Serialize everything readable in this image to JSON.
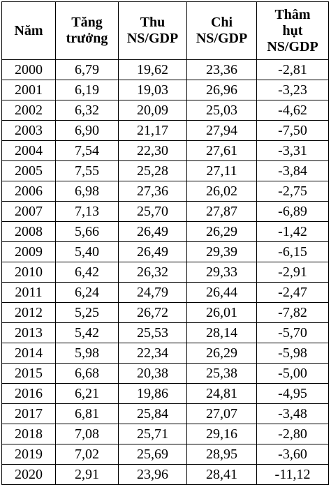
{
  "table": {
    "header": [
      [
        "Năm"
      ],
      [
        "Tăng",
        "trưởng"
      ],
      [
        "Thu",
        "NS/GDP"
      ],
      [
        "Chi",
        "NS/GDP"
      ],
      [
        "Thâm",
        "hụt",
        "NS/GDP"
      ]
    ],
    "rows": [
      [
        "2000",
        "6,79",
        "19,62",
        "23,36",
        "-2,81"
      ],
      [
        "2001",
        "6,19",
        "19,03",
        "26,96",
        "-3,23"
      ],
      [
        "2002",
        "6,32",
        "20,09",
        "25,03",
        "-4,62"
      ],
      [
        "2003",
        "6,90",
        "21,17",
        "27,94",
        "-7,50"
      ],
      [
        "2004",
        "7,54",
        "22,30",
        "27,61",
        "-3,31"
      ],
      [
        "2005",
        "7,55",
        "25,28",
        "27,11",
        "-3,84"
      ],
      [
        "2006",
        "6,98",
        "27,36",
        "26,02",
        "-2,75"
      ],
      [
        "2007",
        "7,13",
        "25,70",
        "27,87",
        "-6,89"
      ],
      [
        "2008",
        "5,66",
        "26,49",
        "26,29",
        "-1,42"
      ],
      [
        "2009",
        "5,40",
        "26,49",
        "29,39",
        "-6,15"
      ],
      [
        "2010",
        "6,42",
        "26,32",
        "29,33",
        "-2,91"
      ],
      [
        "2011",
        "6,24",
        "24,79",
        "26,44",
        "-2,47"
      ],
      [
        "2012",
        "5,25",
        "26,72",
        "26,01",
        "-7,82"
      ],
      [
        "2013",
        "5,42",
        "25,53",
        "28,14",
        "-5,70"
      ],
      [
        "2014",
        "5,98",
        "22,34",
        "26,29",
        "-5,98"
      ],
      [
        "2015",
        "6,68",
        "20,38",
        "25,38",
        "-5,00"
      ],
      [
        "2016",
        "6,21",
        "19,86",
        "24,81",
        "-4,95"
      ],
      [
        "2017",
        "6,81",
        "25,84",
        "27,07",
        "-3,48"
      ],
      [
        "2018",
        "7,08",
        "25,71",
        "29,16",
        "-2,80"
      ],
      [
        "2019",
        "7,02",
        "25,69",
        "28,95",
        "-3,60"
      ],
      [
        "2020",
        "2,91",
        "23,96",
        "28,41",
        "-11,12"
      ]
    ]
  }
}
